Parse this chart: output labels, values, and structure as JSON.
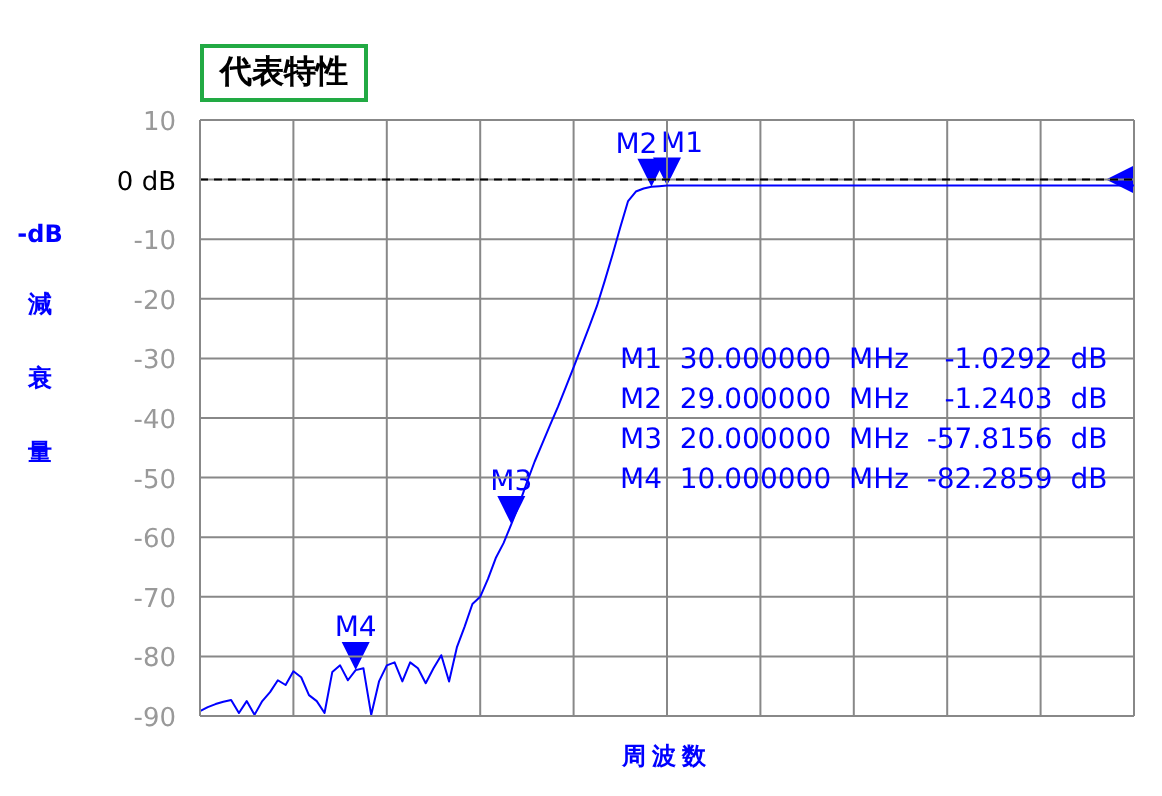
{
  "chart_data": {
    "type": "line",
    "title": "代表特性",
    "ylabel": "-dB 減衰量",
    "xlabel": "周波数",
    "categories": [
      null,
      null,
      null,
      null,
      null,
      null,
      null,
      null,
      null,
      null,
      null,
      null,
      null,
      null,
      null,
      null,
      null,
      null,
      null,
      null,
      null,
      null,
      null,
      null,
      null,
      null,
      null,
      null,
      null,
      null,
      null,
      null,
      null,
      null,
      null,
      null,
      null,
      null,
      null,
      null,
      null,
      null,
      null,
      null,
      null,
      null,
      null,
      null,
      null,
      null,
      null,
      null,
      null,
      null,
      null,
      null,
      null,
      null,
      null,
      null,
      null,
      null,
      null,
      null,
      null,
      null,
      null,
      null,
      null,
      null,
      null,
      null,
      null,
      null,
      null,
      null,
      null,
      null,
      null,
      null,
      null,
      null,
      null,
      null,
      null,
      null,
      null,
      null,
      null,
      null,
      null,
      null,
      null,
      null,
      null,
      null,
      null,
      null,
      null,
      null,
      null,
      null,
      null,
      null,
      null,
      null,
      null,
      null,
      null,
      null,
      null,
      null,
      null,
      null,
      null,
      null,
      null,
      null,
      null,
      null,
      null
    ],
    "series": [
      {
        "color": "#0000ff",
        "values": [
          -89.2,
          -88.5,
          -88.0,
          -87.6,
          -87.3,
          -89.5,
          -87.5,
          -89.8,
          -87.5,
          -86.0,
          -84.0,
          -84.8,
          -82.5,
          -83.5,
          -86.5,
          -87.5,
          -89.5,
          -82.6,
          -81.5,
          -84.0,
          -82.3,
          -82.0,
          -89.8,
          -84.2,
          -81.5,
          -81.0,
          -84.2,
          -81.0,
          -82.0,
          -84.5,
          -82.0,
          -79.8,
          -84.2,
          -78.5,
          -75.0,
          -71.2,
          -70.0,
          -67.0,
          -63.5,
          -61.0,
          -57.8,
          -54.5,
          -50.8,
          -47.3,
          -44.2,
          -41.1,
          -38.1,
          -34.8,
          -31.5,
          -28.1,
          -24.7,
          -21.2,
          -17.0,
          -12.6,
          -8.0,
          -3.6,
          -2.0,
          -1.5,
          -1.2,
          -1.1,
          -1.0,
          -1.0,
          -1.0,
          -1.0,
          -1.0,
          -1.0,
          -1.0,
          -1.0,
          -1.0,
          -1.0,
          -1.0,
          -1.0,
          -1.0,
          -1.0,
          -1.0,
          -1.0,
          -1.0,
          -1.0,
          -1.0,
          -1.0,
          -1.0,
          -1.0,
          -1.0,
          -1.0,
          -1.0,
          -1.0,
          -1.0,
          -1.0,
          -1.0,
          -1.0,
          -1.0,
          -1.0,
          -1.0,
          -1.0,
          -1.0,
          -1.0,
          -1.0,
          -1.0,
          -1.0,
          -1.0,
          -1.0,
          -1.0,
          -1.0,
          -1.0,
          -1.0,
          -1.0,
          -1.0,
          -1.0,
          -1.0,
          -1.0,
          -1.0,
          -1.0,
          -1.0,
          -1.0,
          -1.0,
          -1.0,
          -1.0,
          -1.0,
          -1.0,
          -1.0,
          -1.0
        ]
      }
    ],
    "ylim": [
      -90,
      10
    ],
    "yticks": [
      -90,
      -80,
      -70,
      -60,
      -50,
      -40,
      -30,
      -20,
      -10,
      {
        "value": 0,
        "label": "0 dB"
      },
      10
    ],
    "tick_labels": "y",
    "grid": true,
    "legend": false,
    "marker": "none",
    "line_style": "solid",
    "ref_lines": [
      {
        "axis": "y",
        "value": 0,
        "color": "#000000",
        "line_style": "dashed"
      }
    ],
    "annotations": [
      {
        "text": "M1",
        "y": -1.0
      },
      {
        "text": "M2",
        "y": -1.2
      },
      {
        "text": "M3",
        "y": -57.8
      },
      {
        "text": "M4",
        "y": -82.3
      },
      "M1  30.000000  MHz    -1.0292  dB",
      "M2  29.000000  MHz    -1.2403  dB",
      "M3  20.000000  MHz  -57.8156  dB",
      "M4  10.000000  MHz  -82.2859  dB"
    ]
  }
}
